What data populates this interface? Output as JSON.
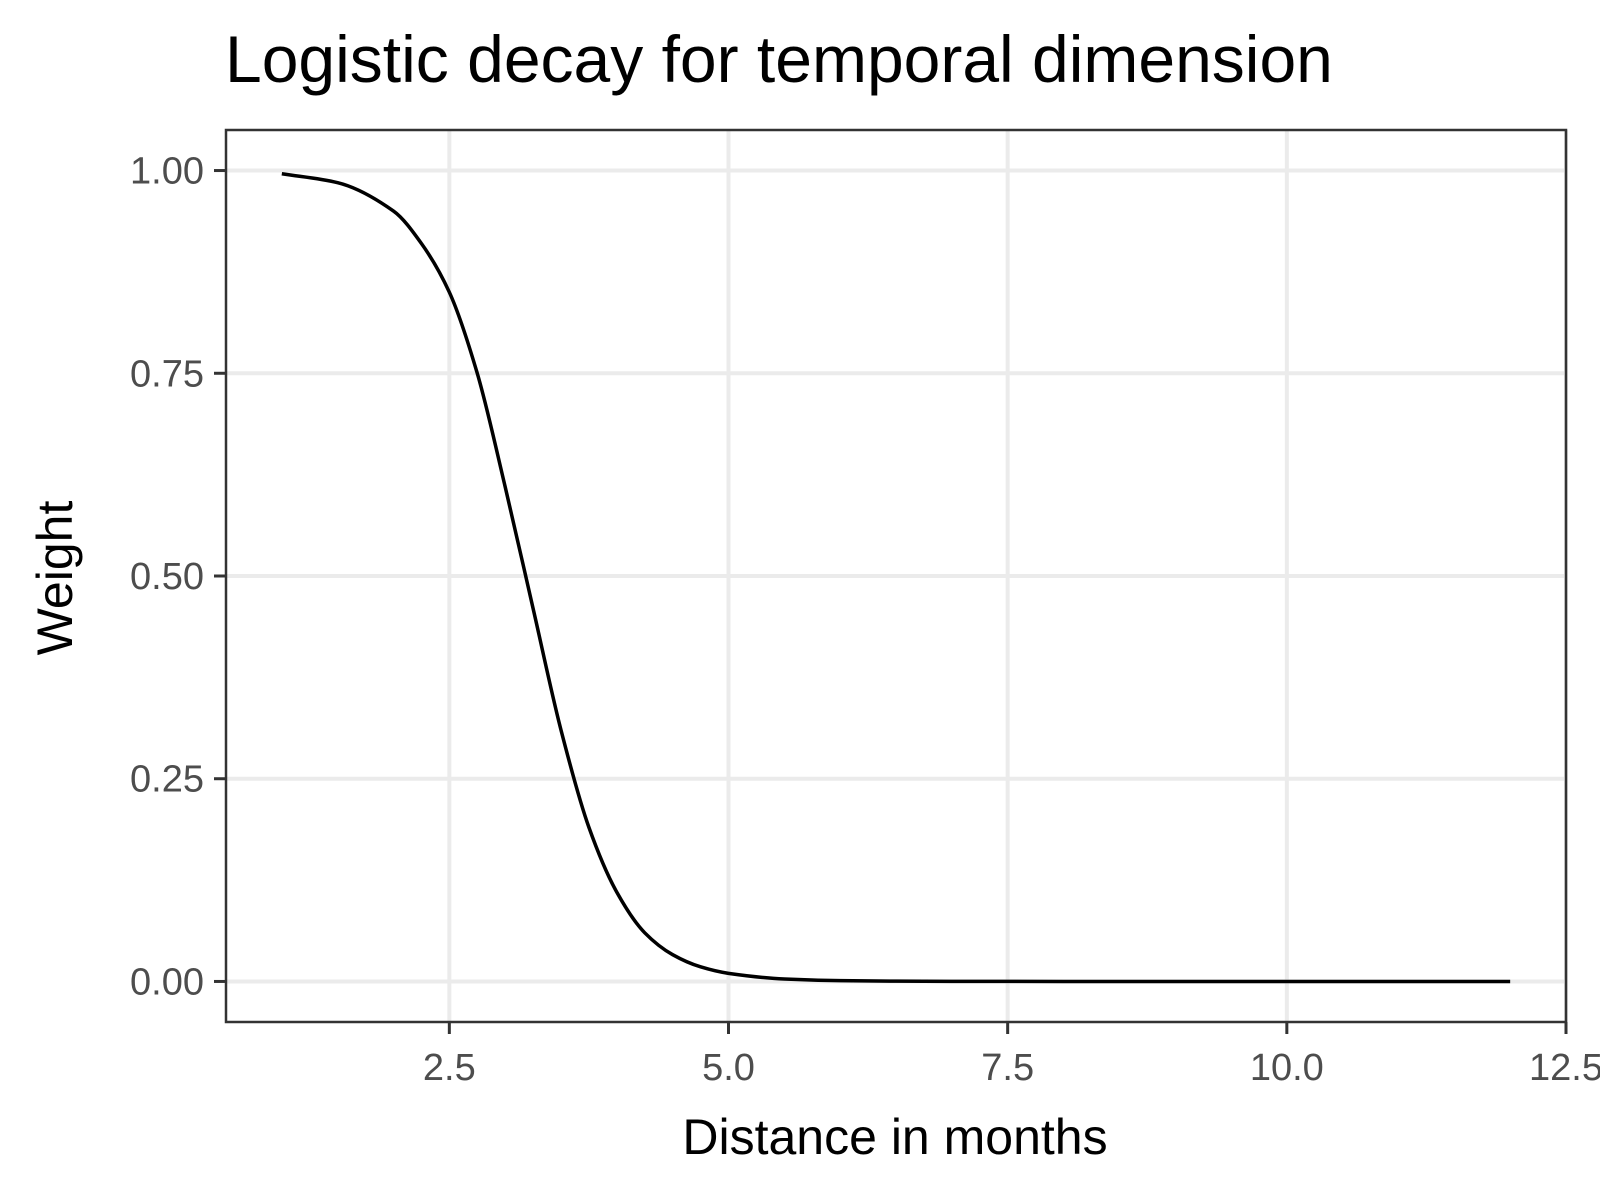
{
  "chart_data": {
    "type": "line",
    "title": "Logistic decay for temporal dimension",
    "xlabel": "Distance in months",
    "ylabel": "Weight",
    "xlim": [
      0.5,
      12.5
    ],
    "ylim": [
      -0.05,
      1.05
    ],
    "x_ticks": [
      2.5,
      5.0,
      7.5,
      10.0,
      12.5
    ],
    "x_tick_labels": [
      "2.5",
      "5.0",
      "7.5",
      "10.0",
      "12.5"
    ],
    "y_ticks": [
      0.0,
      0.25,
      0.5,
      0.75,
      1.0
    ],
    "y_tick_labels": [
      "0.00",
      "0.25",
      "0.50",
      "0.75",
      "1.00"
    ],
    "grid": true,
    "legend": "none",
    "series": [
      {
        "color": "#000000",
        "x": [
          1.0,
          1.5,
          2.0,
          2.25,
          2.5,
          2.75,
          3.0,
          3.25,
          3.5,
          3.75,
          4.0,
          4.25,
          4.5,
          4.75,
          5.0,
          5.5,
          6.0,
          6.5,
          7.0,
          8.0,
          9.0,
          10.0,
          11.0,
          12.0
        ],
        "y": [
          0.996,
          0.985,
          0.95,
          0.91,
          0.85,
          0.75,
          0.61,
          0.46,
          0.31,
          0.19,
          0.11,
          0.06,
          0.033,
          0.018,
          0.01,
          0.003,
          0.001,
          0.0004,
          0.0001,
          0.0,
          0.0,
          0.0,
          0.0,
          0.0
        ]
      }
    ]
  }
}
